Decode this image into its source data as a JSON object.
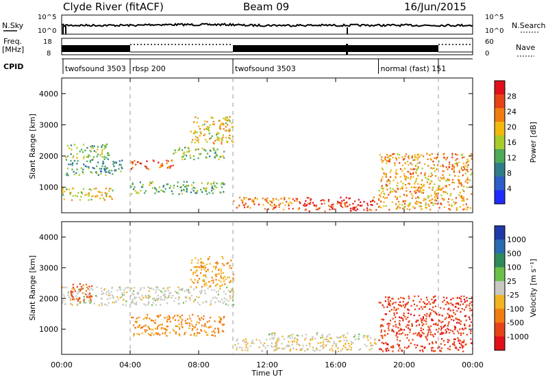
{
  "header": {
    "station": "Clyde River (fitACF)",
    "beam": "Beam 09",
    "date": "16/Jun/2015"
  },
  "noise_panel": {
    "left_label": "N.Sky",
    "right_label": "N.Search",
    "ticks_left": [
      "10^5",
      "10^0"
    ],
    "ticks_right": [
      "10^5",
      "10^0"
    ]
  },
  "freq_panel": {
    "left_label_1": "Freq.",
    "left_label_2": "[MHz]",
    "right_label": "Nave",
    "ticks_left": [
      "18",
      "8"
    ],
    "ticks_right": [
      "60",
      "0"
    ]
  },
  "cpid_panel": {
    "label": "CPID",
    "programs": [
      {
        "name": "twofsound 3503",
        "start_hr": 0.0
      },
      {
        "name": "rbsp 200",
        "start_hr": 4.0
      },
      {
        "name": "twofsound 3503",
        "start_hr": 10.0
      },
      {
        "name": "normal (fast) 151",
        "start_hr": 18.5
      }
    ]
  },
  "axes": {
    "y_label": "Slant Range [km]",
    "x_label": "Time UT",
    "y_ticks": [
      "1000",
      "2000",
      "3000",
      "4000"
    ],
    "x_ticks": [
      "00:00",
      "04:00",
      "08:00",
      "12:00",
      "16:00",
      "20:00",
      "00:00"
    ]
  },
  "chart_data": [
    {
      "type": "heatmap",
      "title": "",
      "quantity": "Power",
      "xlabel": "Time UT",
      "ylabel": "Slant Range [km]",
      "xlim_hours": [
        0,
        24
      ],
      "ylim_km": [
        180,
        4500
      ],
      "colorbar": {
        "label": "Power [dB]",
        "ticks": [
          "4",
          "8",
          "12",
          "16",
          "20",
          "24",
          "28"
        ],
        "range": [
          0,
          30
        ],
        "colors": [
          "#1f2bff",
          "#2d5dc8",
          "#2f7d8a",
          "#4caa58",
          "#a8cc2b",
          "#f2b80e",
          "#f07d12",
          "#e64418",
          "#e0101a"
        ]
      },
      "echo_regions": [
        {
          "t": [
            0.2,
            2.8
          ],
          "r": [
            1900,
            2400
          ],
          "level": 14
        },
        {
          "t": [
            0.2,
            3.5
          ],
          "r": [
            1400,
            1900
          ],
          "level": 10
        },
        {
          "t": [
            0.0,
            3.0
          ],
          "r": [
            600,
            1000
          ],
          "level": 18
        },
        {
          "t": [
            4.0,
            6.5
          ],
          "r": [
            1600,
            1900
          ],
          "level": 24
        },
        {
          "t": [
            4.0,
            9.5
          ],
          "r": [
            800,
            1200
          ],
          "level": 12
        },
        {
          "t": [
            6.5,
            9.5
          ],
          "r": [
            1900,
            2300
          ],
          "level": 14
        },
        {
          "t": [
            7.5,
            10.0
          ],
          "r": [
            2400,
            3300
          ],
          "level": 18
        },
        {
          "t": [
            10.0,
            14.0
          ],
          "r": [
            300,
            700
          ],
          "level": 22
        },
        {
          "t": [
            14.0,
            18.5
          ],
          "r": [
            250,
            700
          ],
          "level": 26
        },
        {
          "t": [
            18.5,
            24.0
          ],
          "r": [
            300,
            2100
          ],
          "level": 20
        }
      ]
    },
    {
      "type": "heatmap",
      "title": "",
      "quantity": "Velocity",
      "xlabel": "Time UT",
      "ylabel": "Slant Range [km]",
      "xlim_hours": [
        0,
        24
      ],
      "ylim_km": [
        180,
        4500
      ],
      "colorbar": {
        "label": "Velocity [m s⁻¹]",
        "ticks": [
          "1000",
          "500",
          "100",
          "25",
          "-25",
          "-100",
          "-500",
          "-1000"
        ],
        "range": [
          -1000,
          1000
        ],
        "colors": [
          "#1f3aa8",
          "#2a6ab0",
          "#2f8a5a",
          "#6cc04a",
          "#c8c8c0",
          "#f2b422",
          "#f07d12",
          "#e64418",
          "#e0101a"
        ]
      },
      "echo_regions": [
        {
          "t": [
            0.0,
            10.0
          ],
          "r": [
            1800,
            2400
          ],
          "velocity": 0
        },
        {
          "t": [
            4.0,
            9.5
          ],
          "r": [
            800,
            1500
          ],
          "velocity": -400
        },
        {
          "t": [
            0.5,
            1.8
          ],
          "r": [
            1900,
            2500
          ],
          "velocity": -600
        },
        {
          "t": [
            7.5,
            10.0
          ],
          "r": [
            2400,
            3400
          ],
          "velocity": -300
        },
        {
          "t": [
            10.0,
            18.5
          ],
          "r": [
            300,
            700
          ],
          "velocity": -100
        },
        {
          "t": [
            18.5,
            24.0
          ],
          "r": [
            300,
            2100
          ],
          "velocity": -700
        },
        {
          "t": [
            12.0,
            18.5
          ],
          "r": [
            700,
            900
          ],
          "velocity": 0
        }
      ]
    }
  ]
}
